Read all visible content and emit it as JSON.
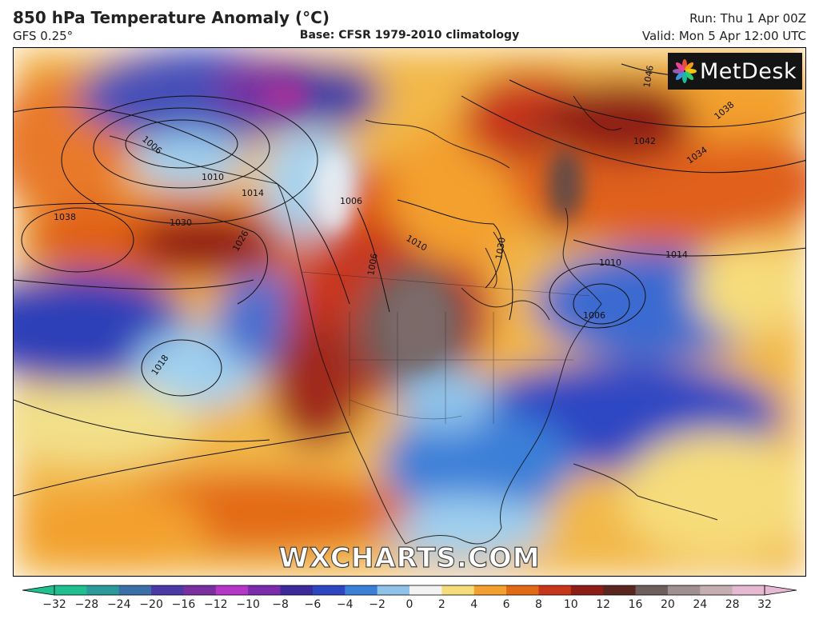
{
  "header": {
    "title": "850 hPa Temperature Anomaly (°C)",
    "model": "GFS 0.25°",
    "base": "Base: CFSR 1979-2010 climatology",
    "run": "Run: Thu 1 Apr 00Z",
    "valid": "Valid: Mon 5 Apr 12:00 UTC"
  },
  "logo": {
    "text": "MetDesk",
    "icon": "metdesk-flower-icon"
  },
  "watermark": "WXCHARTS.COM",
  "isobar_labels": [
    "1006",
    "1010",
    "1014",
    "1038",
    "1030",
    "1026",
    "1018",
    "1006",
    "1010",
    "1030",
    "1042",
    "1046",
    "1038",
    "1034",
    "1014",
    "1010",
    "1006",
    "1006"
  ],
  "colorbar": {
    "ticks": [
      "−32",
      "−28",
      "−24",
      "−20",
      "−16",
      "−12",
      "−10",
      "−8",
      "−6",
      "−4",
      "−2",
      "0",
      "2",
      "4",
      "6",
      "8",
      "10",
      "12",
      "16",
      "20",
      "24",
      "28",
      "32"
    ],
    "colors": [
      "#1fbf8f",
      "#2a9a9a",
      "#3b6fa8",
      "#4b3aa6",
      "#7a2fa0",
      "#b437c8",
      "#7b2cae",
      "#3d2a9a",
      "#2e46c2",
      "#3a7fd8",
      "#8fc3ea",
      "#f2f2f2",
      "#f6dc7a",
      "#f3a02e",
      "#e36a14",
      "#c8361a",
      "#8e1d18",
      "#5a2620",
      "#6e5e5c",
      "#a09092",
      "#c4aeb2",
      "#e6b8d2"
    ]
  }
}
